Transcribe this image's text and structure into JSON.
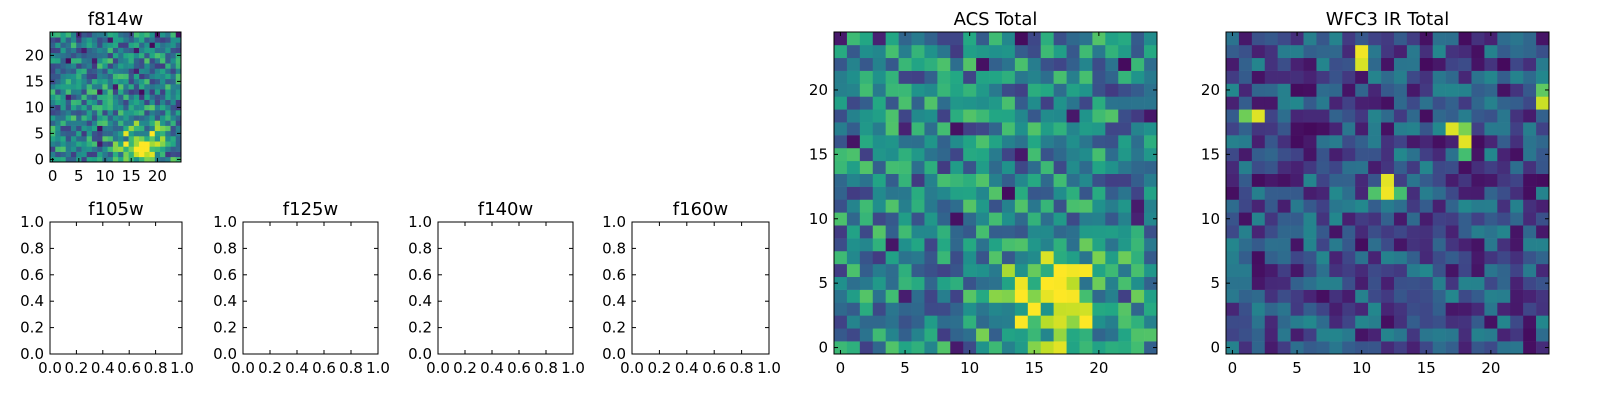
{
  "figure": {
    "panels": [
      {
        "id": "f814w",
        "title": "f814w"
      },
      {
        "id": "f105w",
        "title": "f105w"
      },
      {
        "id": "f125w",
        "title": "f125w"
      },
      {
        "id": "f140w",
        "title": "f140w"
      },
      {
        "id": "f160w",
        "title": "f160w"
      },
      {
        "id": "acs_total",
        "title": "ACS Total"
      },
      {
        "id": "wfc3_ir_total",
        "title": "WFC3 IR Total"
      }
    ]
  },
  "chart_data": [
    {
      "panel": "f814w",
      "type": "heatmap",
      "title": "f814w",
      "grid_size": [
        25,
        25
      ],
      "colormap": "viridis",
      "xlim": [
        -0.5,
        24.5
      ],
      "ylim": [
        -0.5,
        24.5
      ],
      "xticks": [
        0,
        5,
        10,
        15,
        20
      ],
      "yticks": [
        0,
        5,
        10,
        15,
        20
      ],
      "origin": "lower",
      "features": [
        {
          "kind": "bright_source",
          "x": 17,
          "y": 3,
          "sigma": 3.0,
          "peak": 0.95
        }
      ],
      "noise_level": "moderate"
    },
    {
      "panel": "f105w",
      "type": "heatmap",
      "title": "f105w",
      "empty": true,
      "xlim": [
        0.0,
        1.0
      ],
      "ylim": [
        0.0,
        1.0
      ],
      "xticks": [
        "0.0",
        "0.2",
        "0.4",
        "0.6",
        "0.8",
        "1.0"
      ],
      "yticks": [
        "0.0",
        "0.2",
        "0.4",
        "0.6",
        "0.8",
        "1.0"
      ]
    },
    {
      "panel": "f125w",
      "type": "heatmap",
      "title": "f125w",
      "empty": true,
      "xlim": [
        0.0,
        1.0
      ],
      "ylim": [
        0.0,
        1.0
      ],
      "xticks": [
        "0.0",
        "0.2",
        "0.4",
        "0.6",
        "0.8",
        "1.0"
      ],
      "yticks": [
        "0.0",
        "0.2",
        "0.4",
        "0.6",
        "0.8",
        "1.0"
      ]
    },
    {
      "panel": "f140w",
      "type": "heatmap",
      "title": "f140w",
      "empty": true,
      "xlim": [
        0.0,
        1.0
      ],
      "ylim": [
        0.0,
        1.0
      ],
      "xticks": [
        "0.0",
        "0.2",
        "0.4",
        "0.6",
        "0.8",
        "1.0"
      ],
      "yticks": [
        "0.0",
        "0.2",
        "0.4",
        "0.6",
        "0.8",
        "1.0"
      ]
    },
    {
      "panel": "f160w",
      "type": "heatmap",
      "title": "f160w",
      "empty": true,
      "xlim": [
        0.0,
        1.0
      ],
      "ylim": [
        0.0,
        1.0
      ],
      "xticks": [
        "0.0",
        "0.2",
        "0.4",
        "0.6",
        "0.8",
        "1.0"
      ],
      "yticks": [
        "0.0",
        "0.2",
        "0.4",
        "0.6",
        "0.8",
        "1.0"
      ]
    },
    {
      "panel": "acs_total",
      "type": "heatmap",
      "title": "ACS Total",
      "grid_size": [
        25,
        25
      ],
      "colormap": "viridis",
      "xlim": [
        -0.5,
        24.5
      ],
      "ylim": [
        -0.5,
        24.5
      ],
      "xticks": [
        0,
        5,
        10,
        15,
        20
      ],
      "yticks": [
        0,
        5,
        10,
        15,
        20
      ],
      "origin": "lower",
      "features": [
        {
          "kind": "bright_source",
          "x": 17,
          "y": 3,
          "sigma": 3.2,
          "peak": 0.95
        }
      ],
      "noise_level": "moderate"
    },
    {
      "panel": "wfc3_ir_total",
      "type": "heatmap",
      "title": "WFC3 IR Total",
      "grid_size": [
        25,
        25
      ],
      "colormap": "viridis",
      "xlim": [
        -0.5,
        24.5
      ],
      "ylim": [
        -0.5,
        24.5
      ],
      "xticks": [
        0,
        5,
        10,
        15,
        20
      ],
      "yticks": [
        0,
        5,
        10,
        15,
        20
      ],
      "origin": "lower",
      "features": [
        {
          "kind": "hot_pixel",
          "x": 10,
          "y": 23,
          "value": 0.98
        },
        {
          "kind": "hot_pixel",
          "x": 10,
          "y": 22,
          "value": 0.94
        },
        {
          "kind": "hot_pixel",
          "x": 2,
          "y": 18,
          "value": 0.95
        },
        {
          "kind": "hot_pixel",
          "x": 1,
          "y": 18,
          "value": 0.78
        },
        {
          "kind": "hot_pixel",
          "x": 24,
          "y": 19,
          "value": 0.92
        },
        {
          "kind": "hot_pixel",
          "x": 24,
          "y": 20,
          "value": 0.75
        },
        {
          "kind": "hot_pixel",
          "x": 17,
          "y": 17,
          "value": 0.95
        },
        {
          "kind": "hot_pixel",
          "x": 18,
          "y": 17,
          "value": 0.8
        },
        {
          "kind": "hot_pixel",
          "x": 18,
          "y": 16,
          "value": 0.96
        },
        {
          "kind": "hot_pixel",
          "x": 18,
          "y": 15,
          "value": 0.7
        },
        {
          "kind": "hot_pixel",
          "x": 12,
          "y": 13,
          "value": 0.96
        },
        {
          "kind": "hot_pixel",
          "x": 12,
          "y": 12,
          "value": 0.98
        },
        {
          "kind": "hot_pixel",
          "x": 11,
          "y": 12,
          "value": 0.72
        },
        {
          "kind": "hot_pixel",
          "x": 13,
          "y": 12,
          "value": 0.7
        }
      ],
      "background_level": 0.25,
      "noise_level": "high"
    }
  ]
}
